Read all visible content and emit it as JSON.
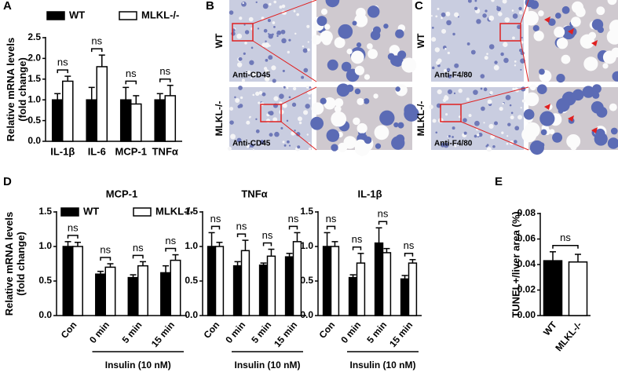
{
  "panel_labels": [
    "A",
    "B",
    "C",
    "D",
    "E"
  ],
  "images": [
    {
      "row_labels": [
        "WT",
        "MLKL-/-"
      ],
      "stains": [
        "Anti-CD45",
        "Anti-CD45"
      ]
    },
    {
      "row_labels": [
        "WT",
        "MLKL-/-"
      ],
      "stains": [
        "Anti-F4/80",
        "Anti-F4/80"
      ]
    }
  ],
  "chart_data": [
    {
      "type": "bar",
      "y_label": [
        "Relative mRNA levels",
        "(fold change)"
      ],
      "legend": true,
      "categories": [
        "IL-1β",
        "IL-6",
        "MCP-1",
        "TNFα"
      ],
      "series": [
        {
          "name": "WT",
          "color": "#000000",
          "values": [
            1.0,
            1.0,
            1.0,
            1.0
          ],
          "errors": [
            0.15,
            0.3,
            0.3,
            0.15
          ]
        },
        {
          "name": "MLKL-/-",
          "color": "#ffffff",
          "values": [
            1.45,
            1.8,
            0.9,
            1.1
          ],
          "errors": [
            0.12,
            0.28,
            0.2,
            0.25
          ]
        }
      ],
      "annotations": [
        "ns",
        "ns",
        "ns",
        "ns"
      ],
      "ylim": [
        0,
        2.5
      ],
      "yticks": [
        {
          "value": 0,
          "label": "0.0"
        },
        0.5,
        {
          "value": 1,
          "label": "1.0"
        },
        1.5,
        {
          "value": 2,
          "label": "2.0"
        },
        2.5
      ]
    },
    {
      "type": "bar",
      "title": "MCP-1",
      "y_label": [
        "Relative mRNA levels",
        "(fold change)"
      ],
      "legend": true,
      "categories": [
        "Con",
        "0 min",
        "5 min",
        "15 min"
      ],
      "group_label": "Insulin (10 nM)",
      "series": [
        {
          "name": "WT",
          "color": "#000000",
          "values": [
            1.0,
            0.6,
            0.55,
            0.62
          ],
          "errors": [
            0.07,
            0.04,
            0.04,
            0.1
          ]
        },
        {
          "name": "MLKL-/-",
          "color": "#ffffff",
          "values": [
            1.0,
            0.7,
            0.72,
            0.8
          ],
          "errors": [
            0.06,
            0.05,
            0.06,
            0.08
          ]
        }
      ],
      "annotations": [
        "ns",
        "ns",
        "ns",
        "ns"
      ],
      "ylim": [
        0,
        1.5
      ],
      "yticks": [
        {
          "value": 0,
          "label": "0.0"
        },
        0.5,
        {
          "value": 1,
          "label": "1.0"
        },
        1.5
      ]
    },
    {
      "type": "bar",
      "title": "TNFα",
      "legend": false,
      "categories": [
        "Con",
        "0 min",
        "5 min",
        "15 min"
      ],
      "group_label": "Insulin (10 nM)",
      "series": [
        {
          "name": "WT",
          "color": "#000000",
          "values": [
            1.0,
            0.72,
            0.73,
            0.85
          ],
          "errors": [
            0.2,
            0.06,
            0.03,
            0.05
          ]
        },
        {
          "name": "MLKL-/-",
          "color": "#ffffff",
          "values": [
            1.0,
            0.94,
            0.86,
            1.07
          ],
          "errors": [
            0.06,
            0.15,
            0.1,
            0.13
          ]
        }
      ],
      "annotations": [
        "ns",
        "ns",
        "ns",
        "ns"
      ],
      "ylim": [
        0,
        1.5
      ],
      "yticks": [
        {
          "value": 0,
          "label": "0.0"
        },
        0.5,
        {
          "value": 1,
          "label": "1.0"
        },
        1.5
      ]
    },
    {
      "type": "bar",
      "title": "IL-1β",
      "legend": false,
      "categories": [
        "Con",
        "0 min",
        "5 min",
        "15 min"
      ],
      "group_label": "Insulin (10 nM)",
      "series": [
        {
          "name": "WT",
          "color": "#000000",
          "values": [
            1.0,
            0.55,
            1.05,
            0.53
          ],
          "errors": [
            0.2,
            0.04,
            0.22,
            0.05
          ]
        },
        {
          "name": "MLKL-/-",
          "color": "#ffffff",
          "values": [
            1.0,
            0.76,
            0.91,
            0.76
          ],
          "errors": [
            0.07,
            0.14,
            0.06,
            0.05
          ]
        }
      ],
      "annotations": [
        "ns",
        "ns",
        "ns",
        "ns"
      ],
      "ylim": [
        0,
        1.5
      ],
      "yticks": [
        {
          "value": 0,
          "label": "0.0"
        },
        0.5,
        {
          "value": 1,
          "label": "1.0"
        },
        1.5
      ]
    },
    {
      "type": "single_bar",
      "y_label": [
        "TUNEL+/liver area (%)"
      ],
      "legend": false,
      "categories": [
        "WT",
        "MLKL-/-"
      ],
      "colors": [
        "#000000",
        "#ffffff"
      ],
      "values": [
        0.043,
        0.042
      ],
      "errors": [
        0.007,
        0.006
      ],
      "annotations": [
        "ns"
      ],
      "ylim": [
        0,
        0.08
      ],
      "yticks": [
        {
          "value": 0,
          "label": "0.00"
        },
        {
          "value": 0.02,
          "label": "0.02"
        },
        {
          "value": 0.04,
          "label": "0.04"
        },
        {
          "value": 0.06,
          "label": "0.06"
        },
        {
          "value": 0.08,
          "label": "0.08"
        }
      ]
    }
  ]
}
